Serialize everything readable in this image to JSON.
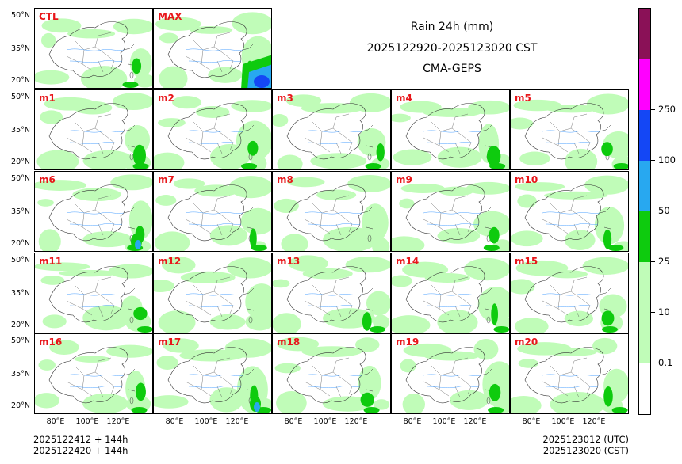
{
  "title": {
    "line1": "Rain 24h (mm)",
    "line2": "2025122920-2025123020 CST",
    "line3": "CMA-GEPS"
  },
  "panels": [
    {
      "label": "CTL",
      "heavy": 1
    },
    {
      "label": "MAX",
      "heavy": 3
    },
    {
      "label": "m1",
      "heavy": 1
    },
    {
      "label": "m2",
      "heavy": 1
    },
    {
      "label": "m3",
      "heavy": 1
    },
    {
      "label": "m4",
      "heavy": 1
    },
    {
      "label": "m5",
      "heavy": 1
    },
    {
      "label": "m6",
      "heavy": 2
    },
    {
      "label": "m7",
      "heavy": 1
    },
    {
      "label": "m8",
      "heavy": 0
    },
    {
      "label": "m9",
      "heavy": 1
    },
    {
      "label": "m10",
      "heavy": 1
    },
    {
      "label": "m11",
      "heavy": 1
    },
    {
      "label": "m12",
      "heavy": 0
    },
    {
      "label": "m13",
      "heavy": 1
    },
    {
      "label": "m14",
      "heavy": 1
    },
    {
      "label": "m15",
      "heavy": 1
    },
    {
      "label": "m16",
      "heavy": 1
    },
    {
      "label": "m17",
      "heavy": 2
    },
    {
      "label": "m18",
      "heavy": 1
    },
    {
      "label": "m19",
      "heavy": 1
    },
    {
      "label": "m20",
      "heavy": 1
    }
  ],
  "axes": {
    "lat_labels": [
      "50°N",
      "35°N",
      "20°N"
    ],
    "lon_labels": [
      "80°E",
      "100°E",
      "120°E"
    ]
  },
  "colorbar": {
    "colors": [
      "#ffffff",
      "#c0fcb8",
      "#c0fcb8",
      "#0ecb0e",
      "#28a8f0",
      "#1447f5",
      "#ff00ff",
      "#8a1157"
    ],
    "labels": [
      "0.1",
      "10",
      "25",
      "50",
      "100",
      "250"
    ]
  },
  "footer": {
    "init_utc": "2025122412 + 144h",
    "init_cst": "2025122420 + 144h",
    "valid_utc": "2025123012 (UTC)",
    "valid_cst": "2025123020 (CST)"
  }
}
